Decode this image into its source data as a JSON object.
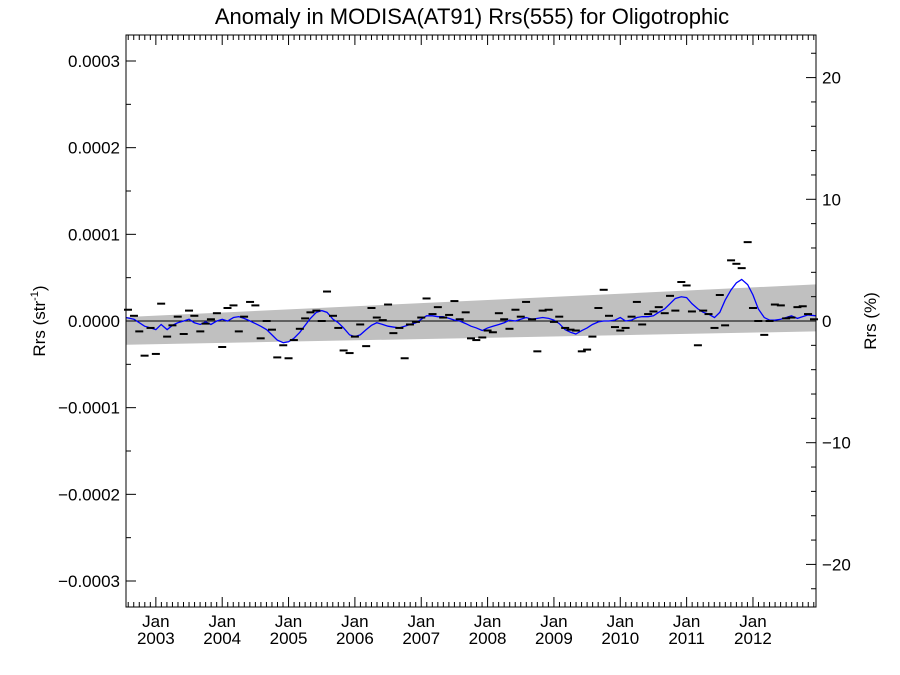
{
  "chart_data": {
    "type": "scatter",
    "title": "Anomaly in MODISA(AT91) Rrs(555) for Oligotrophic",
    "ylabel_left": "Rrs (str",
    "ylabel_left_sup": "-1",
    "ylabel_left_close": ")",
    "ylabel_right": "Rrs (%)",
    "ylim": [
      -0.00033,
      0.00033
    ],
    "ylim_right": [
      -23.5,
      23.5
    ],
    "xlim": [
      2002.55,
      2012.95
    ],
    "yticks": [
      {
        "value": 0.0003,
        "label": "0.0003"
      },
      {
        "value": 0.0002,
        "label": "0.0002"
      },
      {
        "value": 0.0001,
        "label": "0.0001"
      },
      {
        "value": 0.0,
        "label": "0.0000"
      },
      {
        "value": -0.0001,
        "label": "−0.0001"
      },
      {
        "value": -0.0002,
        "label": "−0.0002"
      },
      {
        "value": -0.0003,
        "label": "−0.0003"
      }
    ],
    "yticks_right": [
      {
        "value": 20,
        "label": "20"
      },
      {
        "value": 10,
        "label": "10"
      },
      {
        "value": 0,
        "label": "0"
      },
      {
        "value": -10,
        "label": "−10"
      },
      {
        "value": -20,
        "label": "−20"
      }
    ],
    "xticks": [
      {
        "value": 2003.0,
        "month": "Jan",
        "year": "2003"
      },
      {
        "value": 2004.0,
        "month": "Jan",
        "year": "2004"
      },
      {
        "value": 2005.0,
        "month": "Jan",
        "year": "2005"
      },
      {
        "value": 2006.0,
        "month": "Jan",
        "year": "2006"
      },
      {
        "value": 2007.0,
        "month": "Jan",
        "year": "2007"
      },
      {
        "value": 2008.0,
        "month": "Jan",
        "year": "2008"
      },
      {
        "value": 2009.0,
        "month": "Jan",
        "year": "2009"
      },
      {
        "value": 2010.0,
        "month": "Jan",
        "year": "2010"
      },
      {
        "value": 2011.0,
        "month": "Jan",
        "year": "2011"
      },
      {
        "value": 2012.0,
        "month": "Jan",
        "year": "2012"
      }
    ],
    "zero_line": 0.0,
    "uncertainty_band": {
      "x": [
        2002.55,
        2012.95
      ],
      "upper": [
        4.5e-06,
        4.22e-05
      ],
      "lower": [
        -2.74e-05,
        -1.2e-05
      ],
      "color": "#c0c0c0"
    },
    "points": {
      "marker": "dash",
      "color": "#000000",
      "x": [
        2002.58,
        2002.67,
        2002.75,
        2002.83,
        2002.92,
        2003.0,
        2003.08,
        2003.17,
        2003.25,
        2003.33,
        2003.42,
        2003.5,
        2003.58,
        2003.67,
        2003.75,
        2003.83,
        2003.92,
        2004.0,
        2004.08,
        2004.17,
        2004.25,
        2004.33,
        2004.42,
        2004.5,
        2004.58,
        2004.67,
        2004.75,
        2004.83,
        2004.92,
        2005.0,
        2005.08,
        2005.17,
        2005.25,
        2005.33,
        2005.42,
        2005.5,
        2005.58,
        2005.67,
        2005.75,
        2005.83,
        2005.92,
        2006.0,
        2006.08,
        2006.17,
        2006.25,
        2006.33,
        2006.42,
        2006.5,
        2006.58,
        2006.67,
        2006.75,
        2006.83,
        2006.92,
        2007.0,
        2007.08,
        2007.17,
        2007.25,
        2007.33,
        2007.42,
        2007.5,
        2007.58,
        2007.67,
        2007.75,
        2007.83,
        2007.92,
        2008.0,
        2008.08,
        2008.17,
        2008.25,
        2008.33,
        2008.42,
        2008.5,
        2008.58,
        2008.67,
        2008.75,
        2008.83,
        2008.92,
        2009.0,
        2009.08,
        2009.17,
        2009.25,
        2009.33,
        2009.42,
        2009.5,
        2009.58,
        2009.67,
        2009.75,
        2009.83,
        2009.92,
        2010.0,
        2010.08,
        2010.17,
        2010.25,
        2010.33,
        2010.42,
        2010.5,
        2010.58,
        2010.67,
        2010.75,
        2010.83,
        2010.92,
        2011.0,
        2011.08,
        2011.17,
        2011.25,
        2011.33,
        2011.42,
        2011.5,
        2011.58,
        2011.67,
        2011.75,
        2011.83,
        2011.92,
        2012.0,
        2012.08,
        2012.17,
        2012.25,
        2012.33,
        2012.42,
        2012.5,
        2012.58,
        2012.67,
        2012.75,
        2012.83,
        2012.92
      ],
      "y": [
        1.3e-05,
        6e-06,
        -1.2e-05,
        -4e-05,
        -8e-06,
        -3.8e-05,
        2e-05,
        -1.8e-05,
        -5e-06,
        5e-06,
        -1.5e-05,
        1.2e-05,
        6e-06,
        -1.2e-05,
        -3e-06,
        2e-06,
        9e-06,
        -3e-05,
        1.5e-05,
        1.8e-05,
        -1.2e-05,
        5e-06,
        2.2e-05,
        1.8e-05,
        -2e-05,
        0.0,
        -1e-05,
        -4.2e-05,
        -2.8e-05,
        -4.3e-05,
        -2.2e-05,
        -9e-06,
        3e-06,
        1e-05,
        1.2e-05,
        0.0,
        3.4e-05,
        6e-06,
        -8e-06,
        -3.4e-05,
        -3.7e-05,
        -1.8e-05,
        -4e-06,
        -2.9e-05,
        1.5e-05,
        4e-06,
        1e-06,
        1.9e-05,
        -1.4e-05,
        -8e-06,
        -4.3e-05,
        -4e-06,
        -1e-06,
        4e-06,
        2.6e-05,
        8e-06,
        1.6e-05,
        4e-06,
        7e-06,
        2.3e-05,
        2e-06,
        1e-05,
        -2e-05,
        -2.2e-05,
        -1.9e-05,
        -1.1e-05,
        -1.3e-05,
        9e-06,
        2e-06,
        -9e-06,
        1.3e-05,
        5e-06,
        2.2e-05,
        2e-06,
        -3.5e-05,
        1.2e-05,
        1.3e-05,
        -1e-06,
        5e-06,
        -8e-06,
        -1e-05,
        -1.1e-05,
        -3.5e-05,
        -3.3e-05,
        -1.8e-05,
        1.5e-05,
        3.6e-05,
        6e-06,
        -7e-06,
        -1.1e-05,
        -8e-06,
        5e-06,
        2.2e-05,
        -4e-06,
        8e-06,
        1.1e-05,
        1.6e-05,
        9e-06,
        2.9e-05,
        1.2e-05,
        4.5e-05,
        4.1e-05,
        1.1e-05,
        -2.8e-05,
        1.2e-05,
        8e-06,
        -8e-06,
        3e-05,
        -5e-06,
        7e-05,
        6.6e-05,
        6.1e-05,
        9.1e-05,
        1.5e-05,
        0.0,
        -1.6e-05,
        0.0,
        1.9e-05,
        1.8e-05,
        3e-06,
        4e-06,
        1.6e-05,
        1.7e-05,
        8e-06,
        2e-06
      ]
    },
    "series": [
      {
        "color": "#0000ff",
        "x": [
          2002.55,
          2002.67,
          2002.75,
          2002.83,
          2002.92,
          2003.0,
          2003.08,
          2003.17,
          2003.25,
          2003.33,
          2003.42,
          2003.5,
          2003.58,
          2003.67,
          2003.75,
          2003.83,
          2003.92,
          2004.0,
          2004.08,
          2004.17,
          2004.25,
          2004.33,
          2004.42,
          2004.5,
          2004.58,
          2004.67,
          2004.75,
          2004.83,
          2004.92,
          2005.0,
          2005.08,
          2005.17,
          2005.25,
          2005.33,
          2005.42,
          2005.5,
          2005.58,
          2005.67,
          2005.75,
          2005.83,
          2005.92,
          2006.0,
          2006.08,
          2006.17,
          2006.25,
          2006.33,
          2006.42,
          2006.5,
          2006.58,
          2006.67,
          2006.75,
          2006.83,
          2006.92,
          2007.0,
          2007.08,
          2007.17,
          2007.25,
          2007.33,
          2007.42,
          2007.5,
          2007.58,
          2007.67,
          2007.75,
          2007.83,
          2007.92,
          2008.0,
          2008.08,
          2008.17,
          2008.25,
          2008.33,
          2008.42,
          2008.5,
          2008.58,
          2008.67,
          2008.75,
          2008.83,
          2008.92,
          2009.0,
          2009.08,
          2009.17,
          2009.25,
          2009.33,
          2009.42,
          2009.5,
          2009.58,
          2009.67,
          2009.75,
          2009.83,
          2009.92,
          2010.0,
          2010.08,
          2010.17,
          2010.25,
          2010.33,
          2010.42,
          2010.5,
          2010.58,
          2010.67,
          2010.75,
          2010.83,
          2010.92,
          2011.0,
          2011.08,
          2011.17,
          2011.25,
          2011.33,
          2011.42,
          2011.5,
          2011.58,
          2011.67,
          2011.75,
          2011.83,
          2011.92,
          2012.0,
          2012.08,
          2012.17,
          2012.25,
          2012.33,
          2012.42,
          2012.5,
          2012.58,
          2012.67,
          2012.75,
          2012.83,
          2012.95
        ],
        "values": [
          4e-06,
          2e-06,
          -2e-06,
          -6e-06,
          -8e-06,
          -1e-05,
          -4e-06,
          -1e-05,
          -5e-06,
          -2e-06,
          0.0,
          2e-06,
          -2e-06,
          -4e-06,
          -1e-06,
          -4e-06,
          0.0,
          2e-06,
          0.0,
          4e-06,
          5e-06,
          3e-06,
          0.0,
          -3e-06,
          -6e-06,
          -1e-05,
          -1.6e-05,
          -2.2e-05,
          -2.5e-05,
          -2.4e-05,
          -2e-05,
          -1.3e-05,
          -5e-06,
          3e-06,
          1e-05,
          1.2e-05,
          1e-05,
          2e-06,
          -2e-06,
          -8e-06,
          -1.6e-05,
          -1.8e-05,
          -1.6e-05,
          -1e-05,
          -5e-06,
          -2e-06,
          -4e-06,
          -6e-06,
          -7e-06,
          -8e-06,
          -6e-06,
          -4e-06,
          -2e-06,
          2e-06,
          6e-06,
          6e-06,
          5e-06,
          5e-06,
          3e-06,
          1e-06,
          0.0,
          -3e-06,
          -6e-06,
          -8e-06,
          -1.1e-05,
          -8e-06,
          -6e-06,
          -4e-06,
          -2e-06,
          1e-06,
          0.0,
          2e-06,
          4e-06,
          2e-06,
          3e-06,
          4e-06,
          3e-06,
          1e-06,
          -3e-06,
          -1e-05,
          -1.3e-05,
          -1.5e-05,
          -1.1e-05,
          -8e-06,
          -4e-06,
          -1e-06,
          0.0,
          0.0,
          1e-06,
          4e-06,
          0.0,
          1e-06,
          4e-06,
          5e-06,
          5e-06,
          6e-06,
          1e-05,
          1.4e-05,
          2e-05,
          2.6e-05,
          2.8e-05,
          2.7e-05,
          2e-05,
          1.4e-05,
          1e-05,
          8e-06,
          4e-06,
          1e-05,
          2.4e-05,
          3.6e-05,
          4.4e-05,
          4.8e-05,
          4.2e-05,
          3e-05,
          1.4e-05,
          4e-06,
          1e-06,
          1e-06,
          2e-06,
          4e-06,
          6e-06,
          3e-06,
          5e-06,
          7e-06,
          6e-06
        ]
      }
    ],
    "grid": false,
    "legend": "none"
  }
}
